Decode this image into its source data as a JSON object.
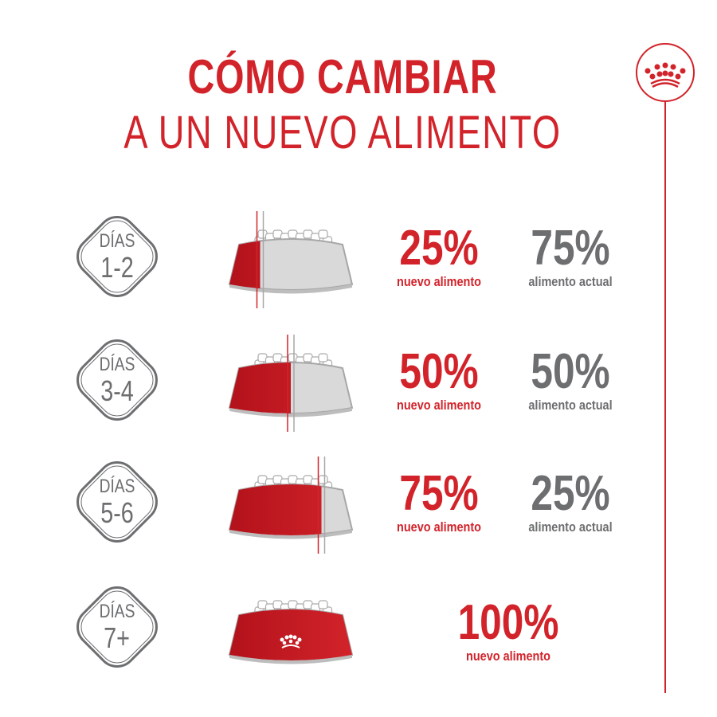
{
  "title": {
    "line1": "CÓMO CAMBIAR",
    "line2": "A UN NUEVO ALIMENTO"
  },
  "colors": {
    "accent": "#d2232a",
    "gray": "#6d6e70"
  },
  "logo": {
    "icon": "royal-canin-crown-icon"
  },
  "rows": [
    {
      "days_label": "DÍAS",
      "days": "1-2",
      "new_pct": "25%",
      "new_label": "nuevo alimento",
      "current_pct": "75%",
      "current_label": "alimento actual",
      "new_fraction": 0.25
    },
    {
      "days_label": "DÍAS",
      "days": "3-4",
      "new_pct": "50%",
      "new_label": "nuevo alimento",
      "current_pct": "50%",
      "current_label": "alimento actual",
      "new_fraction": 0.5
    },
    {
      "days_label": "DÍAS",
      "days": "5-6",
      "new_pct": "75%",
      "new_label": "nuevo alimento",
      "current_pct": "25%",
      "current_label": "alimento actual",
      "new_fraction": 0.75
    },
    {
      "days_label": "DÍAS",
      "days": "7+",
      "new_pct": "100%",
      "new_label": "nuevo alimento",
      "new_fraction": 1.0
    }
  ]
}
